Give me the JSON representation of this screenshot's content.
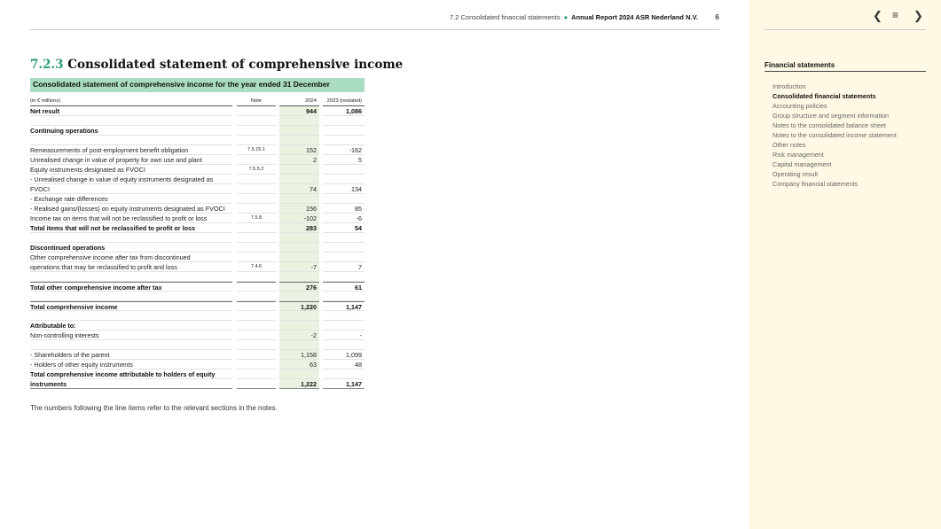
{
  "header": {
    "section": "7.2 Consolidated financial statements",
    "report": "Annual Report 2024 ASR Nederland N.V.",
    "page": "6"
  },
  "title": {
    "number": "7.2.3",
    "text": "Consolidated statement of comprehensive income"
  },
  "table": {
    "caption": "Consolidated statement of comprehensive income for the year ended 31 December",
    "columns": [
      "(in € millions)",
      "Note",
      "2024",
      "2023 (restated)"
    ],
    "rows": [
      {
        "label": "Net result",
        "note": "",
        "v2024": "944",
        "v2023": "1,086",
        "bold": true
      },
      {
        "label": "",
        "note": "",
        "v2024": "",
        "v2023": ""
      },
      {
        "label": "Continuing operations",
        "note": "",
        "v2024": "",
        "v2023": "",
        "bold": true
      },
      {
        "label": "",
        "note": "",
        "v2024": "",
        "v2023": ""
      },
      {
        "label": "Remeasurements of post-employment benefit obligation",
        "note": "7.5.15.1",
        "v2024": "152",
        "v2023": "-162"
      },
      {
        "label": "Unrealised change in value of property for own use and plant",
        "note": "",
        "v2024": "2",
        "v2023": "5"
      },
      {
        "label": "Equity instruments designated as FVOCI",
        "note": "7.5.5.2",
        "v2024": "",
        "v2023": ""
      },
      {
        "label": "- Unrealised change in value of equity instruments designated as",
        "note": "",
        "v2024": "",
        "v2023": ""
      },
      {
        "label": "FVOCI",
        "note": "",
        "v2024": "74",
        "v2023": "134"
      },
      {
        "label": "- Exchange rate differences",
        "note": "",
        "v2024": "",
        "v2023": ""
      },
      {
        "label": "- Realised gains/(losses) on equity instruments designated as FVOCI",
        "note": "",
        "v2024": "156",
        "v2023": "85"
      },
      {
        "label": "Income tax on items that will not be reclassified to profit or loss",
        "note": "7.5.8",
        "v2024": "-102",
        "v2023": "-6"
      },
      {
        "label": "Total items that will not be reclassified to profit or loss",
        "note": "",
        "v2024": "283",
        "v2023": "54",
        "bold": true
      },
      {
        "label": "",
        "note": "",
        "v2024": "",
        "v2023": ""
      },
      {
        "label": "Discontinued operations",
        "note": "",
        "v2024": "",
        "v2023": "",
        "bold": true
      },
      {
        "label": "Other comprehensive income after tax from discontinued",
        "note": "",
        "v2024": "",
        "v2023": ""
      },
      {
        "label": "operations that may be reclassified to profit and loss",
        "note": "7.4.6",
        "v2024": "-7",
        "v2023": "7"
      },
      {
        "label": "",
        "note": "",
        "v2024": "",
        "v2023": ""
      },
      {
        "label": "Total other comprehensive income after tax",
        "note": "",
        "v2024": "276",
        "v2023": "61",
        "bold": true
      },
      {
        "label": "",
        "note": "",
        "v2024": "",
        "v2023": ""
      },
      {
        "label": "Total comprehensive income",
        "note": "",
        "v2024": "1,220",
        "v2023": "1,147",
        "bold": true
      },
      {
        "label": "",
        "note": "",
        "v2024": "",
        "v2023": ""
      },
      {
        "label": "Attributable to:",
        "note": "",
        "v2024": "",
        "v2023": "",
        "bold": true
      },
      {
        "label": "Non-controlling interests",
        "note": "",
        "v2024": "-2",
        "v2023": "-"
      },
      {
        "label": "",
        "note": "",
        "v2024": "",
        "v2023": ""
      },
      {
        "label": "- Shareholders of the parent",
        "note": "",
        "v2024": "1,158",
        "v2023": "1,099"
      },
      {
        "label": "- Holders of other equity instruments",
        "note": "",
        "v2024": "63",
        "v2023": "48"
      },
      {
        "label": "Total comprehensive income attributable to holders of equity",
        "note": "",
        "v2024": "",
        "v2023": "",
        "bold": true
      },
      {
        "label": "instruments",
        "note": "",
        "v2024": "1,222",
        "v2023": "1,147",
        "bold": true
      }
    ],
    "footnote": "The numbers following the line items refer to the relevant sections in the notes."
  },
  "sidebar": {
    "nav": {
      "prev_icon": "chevron-left-icon",
      "menu_icon": "menu-icon",
      "next_icon": "chevron-right-icon"
    },
    "title": "Financial statements",
    "items": [
      {
        "label": "Introduction"
      },
      {
        "label": "Consolidated financial statements",
        "active": true
      },
      {
        "label": "Accounting policies"
      },
      {
        "label": "Group structure and segment information"
      },
      {
        "label": "Notes to the consolidated balance sheet"
      },
      {
        "label": "Notes to the consolidated income statement"
      },
      {
        "label": "Other notes"
      },
      {
        "label": "Risk management"
      },
      {
        "label": "Capital management"
      },
      {
        "label": "Operating result"
      },
      {
        "label": "Company financial statements"
      }
    ]
  },
  "colors": {
    "accent": "#2a9d6a",
    "caption_band": "#a9dcc1",
    "current_year_column": "#eaf3e1",
    "sidebar_bg": "#fff8e5"
  }
}
